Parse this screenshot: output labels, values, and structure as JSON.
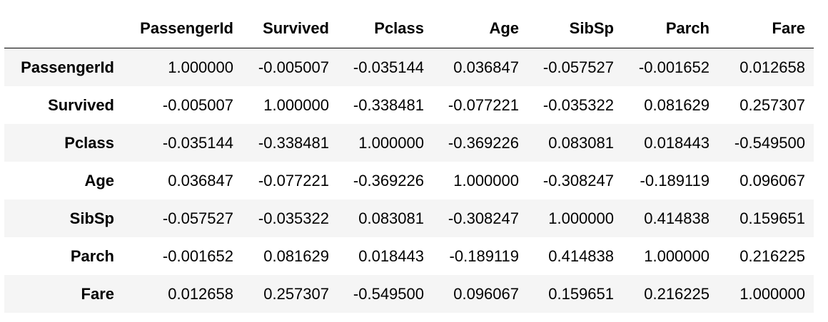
{
  "table": {
    "columns": [
      "PassengerId",
      "Survived",
      "Pclass",
      "Age",
      "SibSp",
      "Parch",
      "Fare"
    ],
    "rows": [
      {
        "index": "PassengerId",
        "cells": [
          "1.000000",
          "-0.005007",
          "-0.035144",
          "0.036847",
          "-0.057527",
          "-0.001652",
          "0.012658"
        ]
      },
      {
        "index": "Survived",
        "cells": [
          "-0.005007",
          "1.000000",
          "-0.338481",
          "-0.077221",
          "-0.035322",
          "0.081629",
          "0.257307"
        ]
      },
      {
        "index": "Pclass",
        "cells": [
          "-0.035144",
          "-0.338481",
          "1.000000",
          "-0.369226",
          "0.083081",
          "0.018443",
          "-0.549500"
        ]
      },
      {
        "index": "Age",
        "cells": [
          "0.036847",
          "-0.077221",
          "-0.369226",
          "1.000000",
          "-0.308247",
          "-0.189119",
          "0.096067"
        ]
      },
      {
        "index": "SibSp",
        "cells": [
          "-0.057527",
          "-0.035322",
          "0.083081",
          "-0.308247",
          "1.000000",
          "0.414838",
          "0.159651"
        ]
      },
      {
        "index": "Parch",
        "cells": [
          "-0.001652",
          "0.081629",
          "0.018443",
          "-0.189119",
          "0.414838",
          "1.000000",
          "0.216225"
        ]
      },
      {
        "index": "Fare",
        "cells": [
          "0.012658",
          "0.257307",
          "-0.549500",
          "0.096067",
          "0.159651",
          "0.216225",
          "1.000000"
        ]
      }
    ]
  }
}
